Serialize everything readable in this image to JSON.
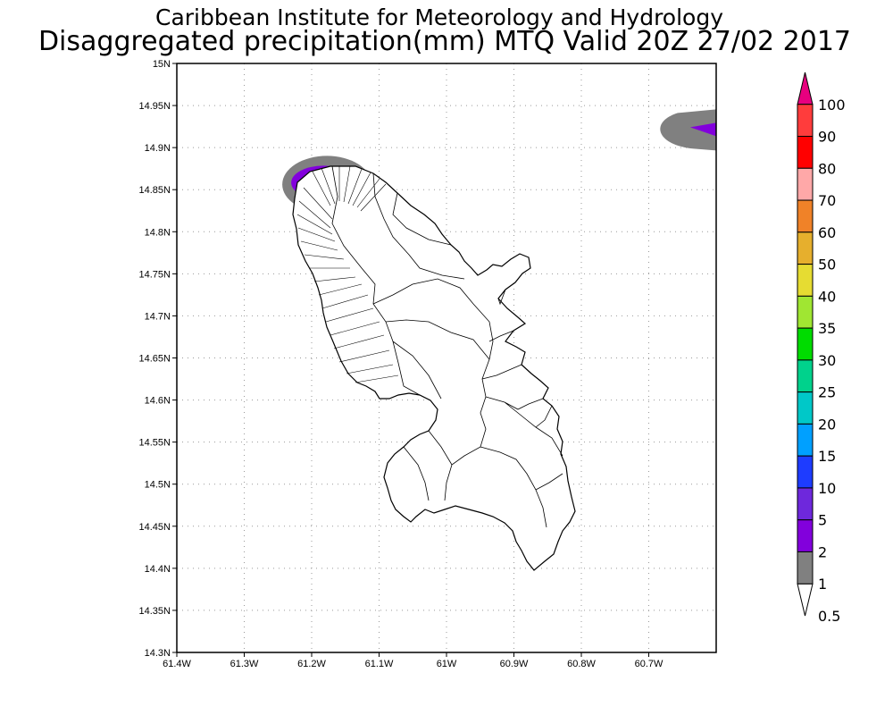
{
  "header": {
    "title_line1": "Caribbean Institute for Meteorology and Hydrology",
    "title_line2": "Disaggregated precipitation(mm) MTQ Valid 20Z 27/02 2017"
  },
  "map": {
    "region": "Martinique",
    "lon_range": [
      -61.4,
      -60.6
    ],
    "lat_range": [
      14.3,
      15.0
    ],
    "lat_ticks": [
      {
        "value": 15.0,
        "label": "15N"
      },
      {
        "value": 14.95,
        "label": "14.95N"
      },
      {
        "value": 14.9,
        "label": "14.9N"
      },
      {
        "value": 14.85,
        "label": "14.85N"
      },
      {
        "value": 14.8,
        "label": "14.8N"
      },
      {
        "value": 14.75,
        "label": "14.75N"
      },
      {
        "value": 14.7,
        "label": "14.7N"
      },
      {
        "value": 14.65,
        "label": "14.65N"
      },
      {
        "value": 14.6,
        "label": "14.6N"
      },
      {
        "value": 14.55,
        "label": "14.55N"
      },
      {
        "value": 14.5,
        "label": "14.5N"
      },
      {
        "value": 14.45,
        "label": "14.45N"
      },
      {
        "value": 14.4,
        "label": "14.4N"
      },
      {
        "value": 14.35,
        "label": "14.35N"
      },
      {
        "value": 14.3,
        "label": "14.3N"
      }
    ],
    "lon_ticks": [
      {
        "value": -61.4,
        "label": "61.4W"
      },
      {
        "value": -61.3,
        "label": "61.3W"
      },
      {
        "value": -61.2,
        "label": "61.2W"
      },
      {
        "value": -61.1,
        "label": "61.1W"
      },
      {
        "value": -61.0,
        "label": "61W"
      },
      {
        "value": -60.9,
        "label": "60.9W"
      },
      {
        "value": -60.8,
        "label": "60.8W"
      },
      {
        "value": -60.7,
        "label": "60.7W"
      }
    ],
    "grid": true,
    "precip_areas": [
      {
        "name": "north-precip",
        "center_lon": -61.18,
        "center_lat": 14.853,
        "levels": [
          "0.5",
          "2"
        ]
      },
      {
        "name": "northeast-precip",
        "center_lon": -60.62,
        "center_lat": 14.922,
        "levels": [
          "0.5",
          "2"
        ]
      }
    ]
  },
  "colorbar": {
    "levels": [
      {
        "label": "100",
        "color": "#e8007f"
      },
      {
        "label": "90",
        "color": "#ff3c3c"
      },
      {
        "label": "80",
        "color": "#ff0000"
      },
      {
        "label": "70",
        "color": "#ffa8a8"
      },
      {
        "label": "60",
        "color": "#f08228"
      },
      {
        "label": "50",
        "color": "#e6af2d"
      },
      {
        "label": "40",
        "color": "#e6dc32"
      },
      {
        "label": "35",
        "color": "#a0e632"
      },
      {
        "label": "30",
        "color": "#00dc00"
      },
      {
        "label": "25",
        "color": "#00d28c"
      },
      {
        "label": "20",
        "color": "#00c8c8"
      },
      {
        "label": "15",
        "color": "#00a0ff"
      },
      {
        "label": "10",
        "color": "#1e3cff"
      },
      {
        "label": "5",
        "color": "#6e28dc"
      },
      {
        "label": "2",
        "color": "#8200dc"
      },
      {
        "label": "1",
        "color": "#a000c8"
      },
      {
        "label": "0.5",
        "color": "#808080"
      }
    ]
  }
}
